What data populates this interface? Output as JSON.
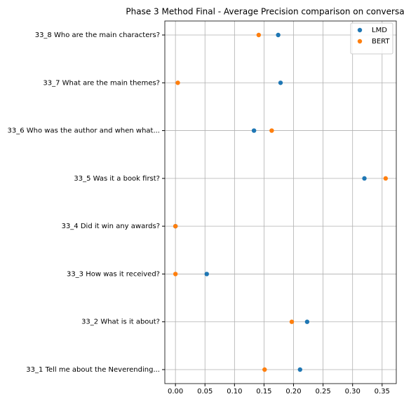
{
  "chart_data": {
    "type": "scatter",
    "title": "Phase 3 Method Final - Average Precision comparison on conversa",
    "categories": [
      "33_1 Tell me about the Neverending...",
      "33_2 What is it about?",
      "33_3 How was it received?",
      "33_4 Did it win any awards?",
      "33_5 Was it a book first?",
      "33_6 Who was the author and when what...",
      "33_7 What are the main themes?",
      "33_8 Who are the main characters?"
    ],
    "series": [
      {
        "name": "LMD",
        "color": "#1f77b4",
        "values": [
          0.211,
          0.223,
          0.053,
          0.0,
          0.32,
          0.133,
          0.178,
          0.174
        ]
      },
      {
        "name": "BERT",
        "color": "#ff7f0e",
        "values": [
          0.151,
          0.197,
          0.0,
          0.0,
          0.356,
          0.163,
          0.004,
          0.141
        ]
      }
    ],
    "xlim": [
      -0.018,
      0.374
    ],
    "xticks": [
      {
        "value": 0,
        "label": "0.00"
      },
      {
        "value": 0.05,
        "label": "0.05"
      },
      {
        "value": 0.1,
        "label": "0.10"
      },
      {
        "value": 0.15,
        "label": "0.15"
      },
      {
        "value": 0.2,
        "label": "0.20"
      },
      {
        "value": 0.25,
        "label": "0.25"
      },
      {
        "value": 0.3,
        "label": "0.30"
      },
      {
        "value": 0.35,
        "label": "0.35"
      }
    ],
    "grid": true,
    "legend": "upper right"
  }
}
